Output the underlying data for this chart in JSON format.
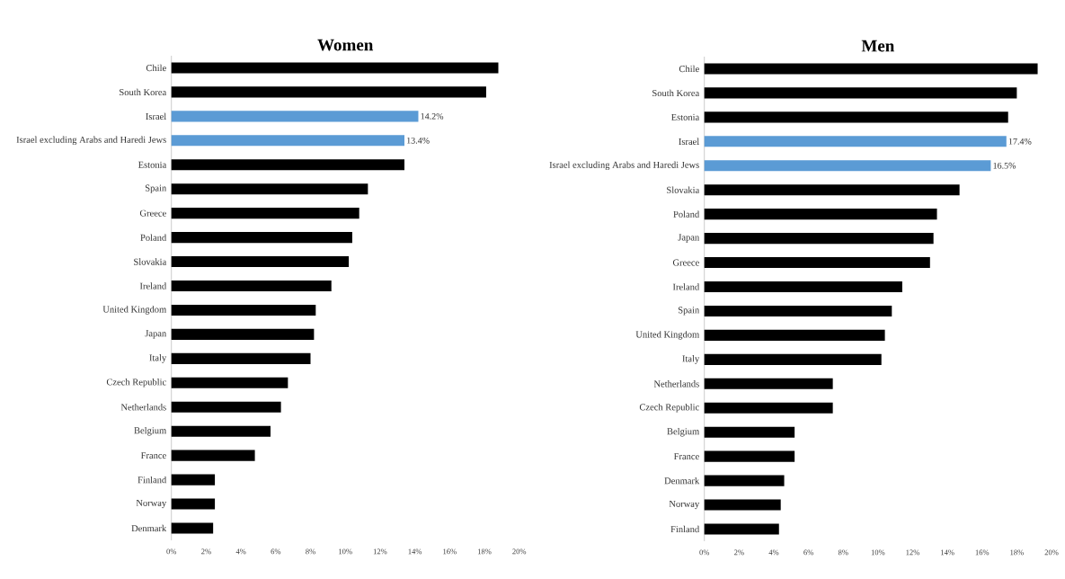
{
  "chart_data": [
    {
      "type": "bar",
      "orientation": "horizontal",
      "title": "Women",
      "categories": [
        "Chile",
        "South Korea",
        "Israel",
        "Israel excluding Arabs and Haredi Jews",
        "Estonia",
        "Spain",
        "Greece",
        "Poland",
        "Slovakia",
        "Ireland",
        "United Kingdom",
        "Japan",
        "Italy",
        "Czech Republic",
        "Netherlands",
        "Belgium",
        "France",
        "Finland",
        "Norway",
        "Denmark"
      ],
      "values": [
        18.8,
        18.1,
        14.2,
        13.4,
        13.4,
        11.3,
        10.8,
        10.4,
        10.2,
        9.2,
        8.3,
        8.2,
        8.0,
        6.7,
        6.3,
        5.7,
        4.8,
        2.5,
        2.5,
        2.4
      ],
      "colors": [
        "#000000",
        "#000000",
        "#5b9bd5",
        "#5b9bd5",
        "#000000",
        "#000000",
        "#000000",
        "#000000",
        "#000000",
        "#000000",
        "#000000",
        "#000000",
        "#000000",
        "#000000",
        "#000000",
        "#000000",
        "#000000",
        "#000000",
        "#000000",
        "#000000"
      ],
      "value_labels": [
        null,
        null,
        "14.2%",
        "13.4%",
        null,
        null,
        null,
        null,
        null,
        null,
        null,
        null,
        null,
        null,
        null,
        null,
        null,
        null,
        null,
        null
      ],
      "xlim": [
        0,
        20
      ],
      "xticks": [
        {
          "value": 0,
          "label": "0%"
        },
        {
          "value": 2,
          "label": "2%"
        },
        {
          "value": 4,
          "label": "4%"
        },
        {
          "value": 6,
          "label": "6%"
        },
        {
          "value": 8,
          "label": "8%"
        },
        {
          "value": 10,
          "label": "10%"
        },
        {
          "value": 12,
          "label": "12%"
        },
        {
          "value": 14,
          "label": "14%"
        },
        {
          "value": 16,
          "label": "16%"
        },
        {
          "value": 18,
          "label": "18%"
        },
        {
          "value": 20,
          "label": "20%"
        }
      ]
    },
    {
      "type": "bar",
      "orientation": "horizontal",
      "title": "Men",
      "categories": [
        "Chile",
        "South Korea",
        "Estonia",
        "Israel",
        "Israel excluding Arabs and Haredi Jews",
        "Slovakia",
        "Poland",
        "Japan",
        "Greece",
        "Ireland",
        "Spain",
        "United Kingdom",
        "Italy",
        "Netherlands",
        "Czech Republic",
        "Belgium",
        "France",
        "Denmark",
        "Norway",
        "Finland"
      ],
      "values": [
        19.2,
        18.0,
        17.5,
        17.4,
        16.5,
        14.7,
        13.4,
        13.2,
        13.0,
        11.4,
        10.8,
        10.4,
        10.2,
        7.4,
        7.4,
        5.2,
        5.2,
        4.6,
        4.4,
        4.3
      ],
      "colors": [
        "#000000",
        "#000000",
        "#000000",
        "#5b9bd5",
        "#5b9bd5",
        "#000000",
        "#000000",
        "#000000",
        "#000000",
        "#000000",
        "#000000",
        "#000000",
        "#000000",
        "#000000",
        "#000000",
        "#000000",
        "#000000",
        "#000000",
        "#000000",
        "#000000"
      ],
      "value_labels": [
        null,
        null,
        null,
        "17.4%",
        "16.5%",
        null,
        null,
        null,
        null,
        null,
        null,
        null,
        null,
        null,
        null,
        null,
        null,
        null,
        null,
        null
      ],
      "xlim": [
        0,
        20
      ],
      "xticks": [
        {
          "value": 0,
          "label": "0%"
        },
        {
          "value": 2,
          "label": "2%"
        },
        {
          "value": 4,
          "label": "4%"
        },
        {
          "value": 6,
          "label": "6%"
        },
        {
          "value": 8,
          "label": "8%"
        },
        {
          "value": 10,
          "label": "10%"
        },
        {
          "value": 12,
          "label": "12%"
        },
        {
          "value": 14,
          "label": "14%"
        },
        {
          "value": 16,
          "label": "16%"
        },
        {
          "value": 18,
          "label": "18%"
        },
        {
          "value": 20,
          "label": "20%"
        }
      ]
    }
  ]
}
